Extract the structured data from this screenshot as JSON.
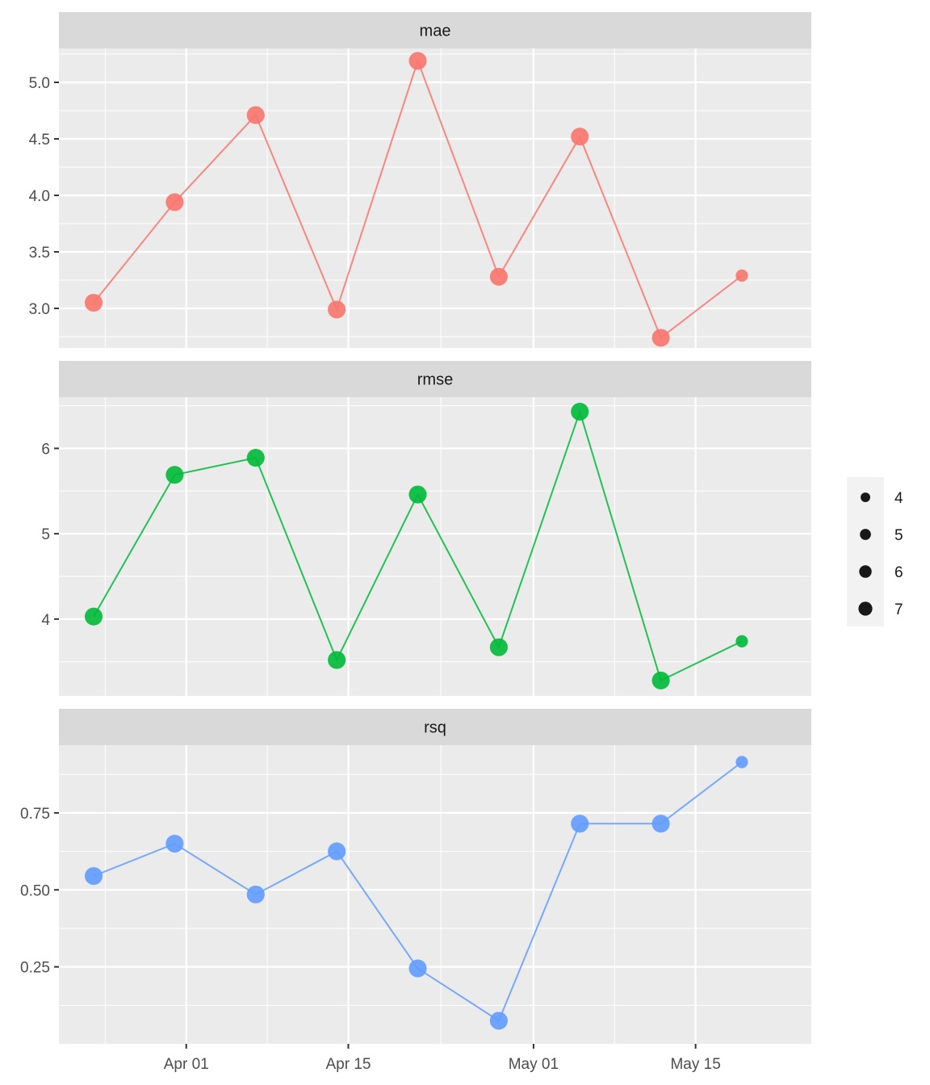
{
  "chart_data": {
    "type": "line",
    "x_type": "date",
    "x": [
      "2024-03-24",
      "2024-03-31",
      "2024-04-07",
      "2024-04-14",
      "2024-04-21",
      "2024-04-28",
      "2024-05-05",
      "2024-05-12",
      "2024-05-19"
    ],
    "x_ticks": [
      {
        "date": "2024-04-01",
        "label": "Apr 01"
      },
      {
        "date": "2024-04-15",
        "label": "Apr 15"
      },
      {
        "date": "2024-05-01",
        "label": "May 01"
      },
      {
        "date": "2024-05-15",
        "label": "May 15"
      }
    ],
    "x_range": [
      "2024-03-21",
      "2024-05-25"
    ],
    "grid": true,
    "legend": {
      "placement": "right",
      "title": "",
      "entries": [
        {
          "label": "4",
          "size": 4
        },
        {
          "label": "5",
          "size": 5
        },
        {
          "label": "6",
          "size": 6
        },
        {
          "label": "7",
          "size": 7
        }
      ]
    },
    "point_size_values": [
      7,
      7,
      7,
      7,
      7,
      7,
      7,
      7,
      4
    ],
    "facets": [
      {
        "label": "mae",
        "color": "#F8766D",
        "ylim": [
          2.65,
          5.3
        ],
        "y_ticks": [
          3.0,
          3.5,
          4.0,
          4.5,
          5.0
        ],
        "y_tick_labels": [
          "3.0",
          "3.5",
          "4.0",
          "4.5",
          "5.0"
        ],
        "values": [
          3.05,
          3.94,
          4.71,
          2.99,
          5.19,
          3.28,
          4.52,
          2.74,
          3.29
        ]
      },
      {
        "label": "rmse",
        "color": "#00BA38",
        "ylim": [
          3.1,
          6.6
        ],
        "y_ticks": [
          4,
          5,
          6
        ],
        "y_tick_labels": [
          "4",
          "5",
          "6"
        ],
        "values": [
          4.03,
          5.69,
          5.89,
          3.52,
          5.46,
          3.67,
          6.43,
          3.28,
          3.74
        ]
      },
      {
        "label": "rsq",
        "color": "#619CFF",
        "ylim": [
          0.0,
          0.97
        ],
        "y_ticks": [
          0.25,
          0.5,
          0.75
        ],
        "y_tick_labels": [
          "0.25",
          "0.50",
          "0.75"
        ],
        "values": [
          0.545,
          0.65,
          0.485,
          0.625,
          0.245,
          0.075,
          0.715,
          0.715,
          0.915
        ]
      }
    ]
  }
}
